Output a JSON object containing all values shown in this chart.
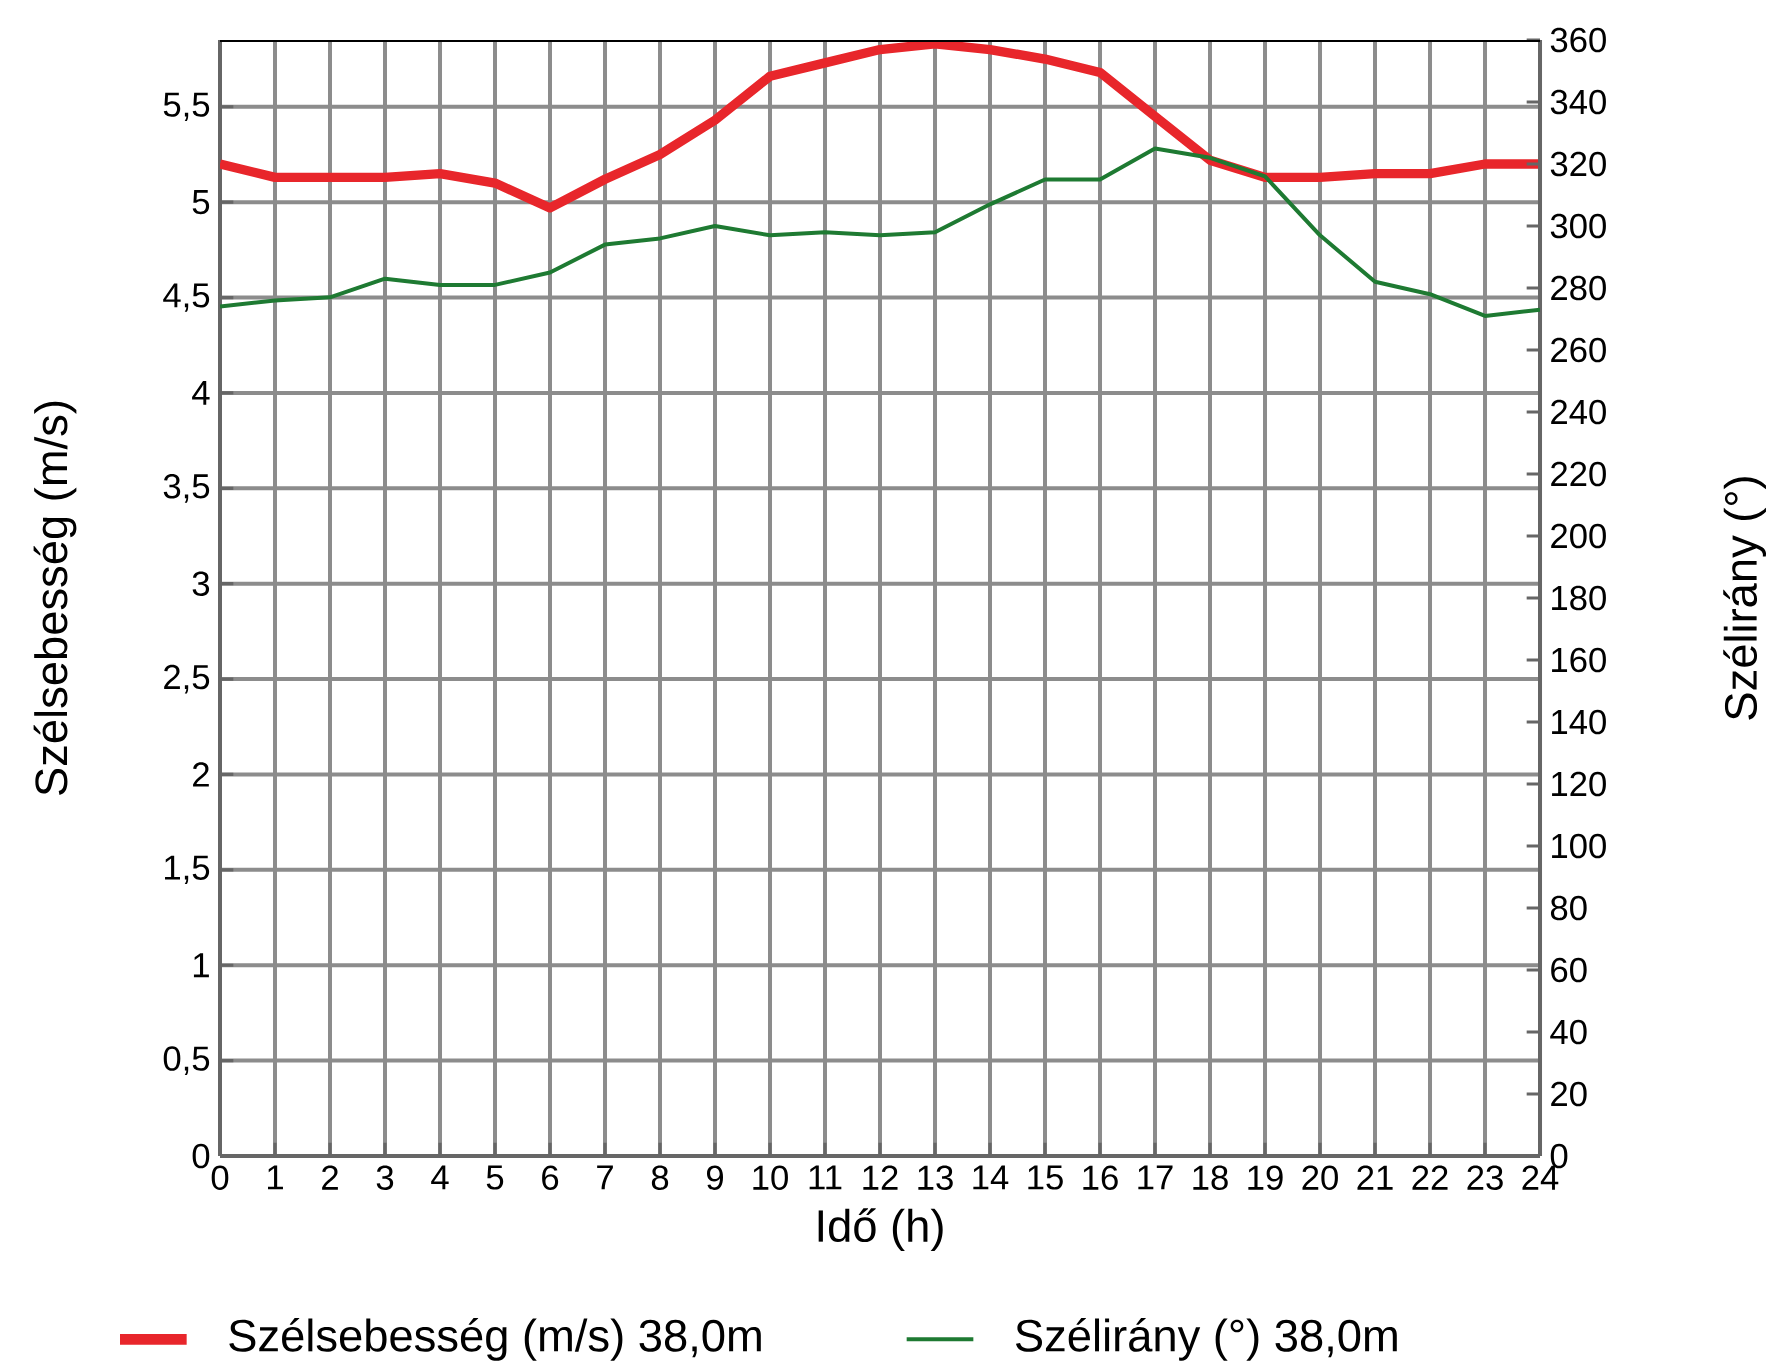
{
  "chart_data": {
    "type": "line",
    "xlabel": "Idő (h)",
    "ylabel": "Szélsebesség (m/s)",
    "y2label": "Szélirány (°)",
    "x": [
      0,
      1,
      2,
      3,
      4,
      5,
      6,
      7,
      8,
      9,
      10,
      11,
      12,
      13,
      14,
      15,
      16,
      17,
      18,
      19,
      20,
      21,
      22,
      23,
      24
    ],
    "series": [
      {
        "name": "Szélsebesség (m/s) 38,0m",
        "color": "#e8262b",
        "values": [
          5.2,
          5.13,
          5.13,
          5.13,
          5.15,
          5.1,
          4.97,
          5.12,
          5.25,
          5.43,
          5.66,
          5.73,
          5.8,
          5.83,
          5.8,
          5.75,
          5.68,
          5.45,
          5.22,
          5.13,
          5.13,
          5.15,
          5.15,
          5.2,
          5.2
        ]
      },
      {
        "name": "Szélirány (°) 38,0m",
        "color": "#1e7a32",
        "axis": "y2",
        "values": [
          274,
          276,
          277,
          283,
          281,
          281,
          285,
          294,
          296,
          300,
          297,
          298,
          297,
          298,
          307,
          315,
          315,
          325,
          322,
          316,
          297,
          282,
          278,
          271,
          273
        ]
      }
    ],
    "xlim": [
      0,
      24
    ],
    "xticks": [
      0,
      1,
      2,
      3,
      4,
      5,
      6,
      7,
      8,
      9,
      10,
      11,
      12,
      13,
      14,
      15,
      16,
      17,
      18,
      19,
      20,
      21,
      22,
      23,
      24
    ],
    "ylim": [
      0,
      5.85
    ],
    "yticks": [
      0,
      {
        "value": 0.5,
        "label": "0,5"
      },
      1,
      {
        "value": 1.5,
        "label": "1,5"
      },
      2,
      {
        "value": 2.5,
        "label": "2,5"
      },
      3,
      {
        "value": 3.5,
        "label": "3,5"
      },
      4,
      {
        "value": 4.5,
        "label": "4,5"
      },
      5,
      {
        "value": 5.5,
        "label": "5,5"
      }
    ],
    "y2lim": [
      0,
      360
    ],
    "y2ticks": [
      0,
      20,
      40,
      60,
      80,
      100,
      120,
      140,
      160,
      180,
      200,
      220,
      240,
      260,
      280,
      300,
      320,
      340,
      360
    ],
    "grid": true,
    "legend": "bottom",
    "marker": "none",
    "line_style": "solid"
  }
}
